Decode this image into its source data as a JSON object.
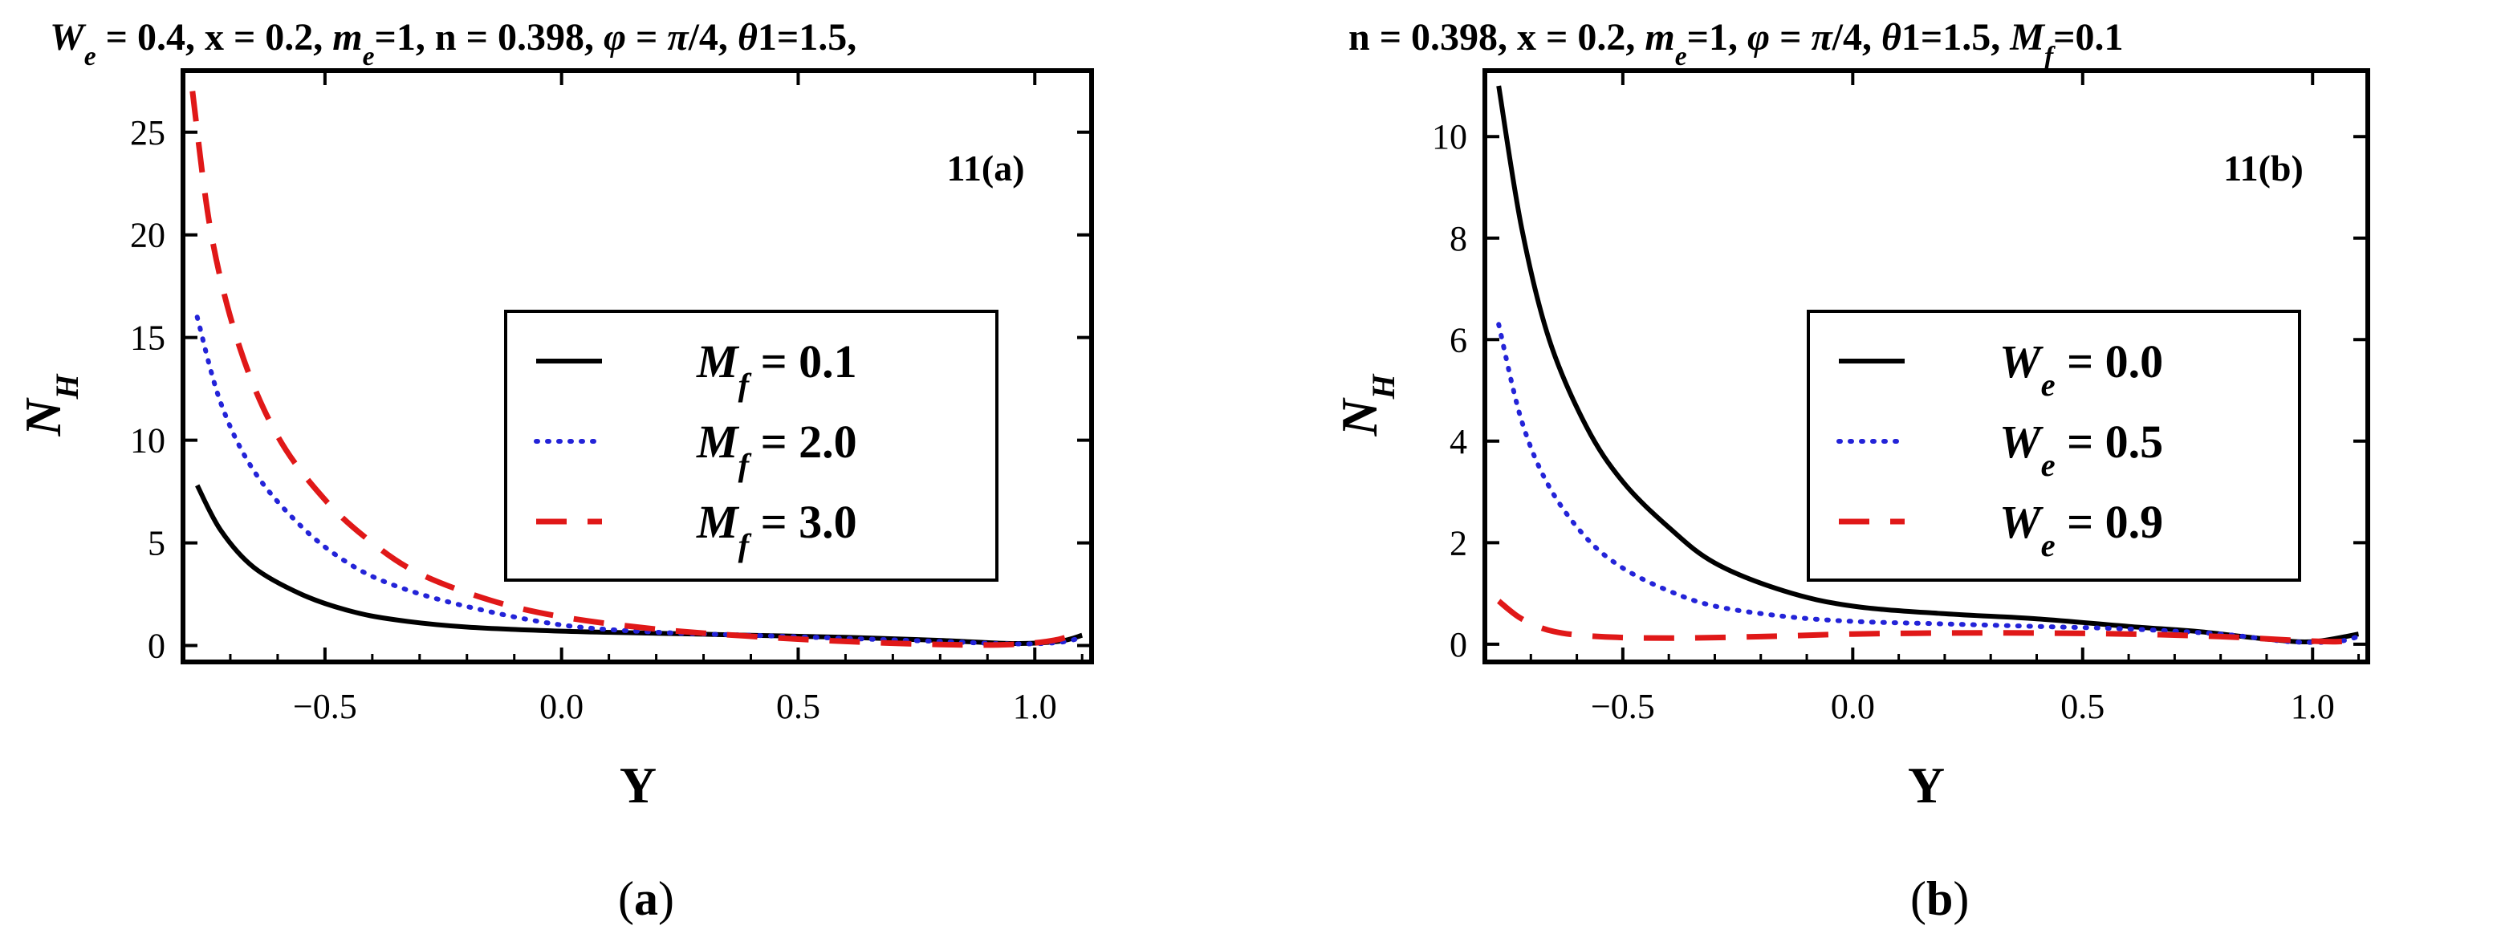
{
  "chart_data": [
    {
      "type": "line",
      "title": "W_e = 0.4, x = 0.2, m_e=1, n = 0.398, φ = π/4, θ1=1.5,",
      "title_parts": [
        {
          "t": "W",
          "i": true
        },
        {
          "t": "e",
          "sub": true,
          "i": true
        },
        {
          "t": " = 0.4, x = 0.2, "
        },
        {
          "t": "m",
          "i": true
        },
        {
          "t": "e",
          "sub": true,
          "i": true
        },
        {
          "t": "=1, n = 0.398, "
        },
        {
          "t": "φ",
          "i": true
        },
        {
          "t": " = "
        },
        {
          "t": "π",
          "i": true
        },
        {
          "t": "/4, "
        },
        {
          "t": "θ",
          "i": true
        },
        {
          "t": "1=1.5,"
        }
      ],
      "panel_tag": "11(a)",
      "caption": "(a)",
      "caption_bold": "a",
      "xlabel": "Y",
      "ylabel": "N_H",
      "xlim": [
        -0.8,
        1.12
      ],
      "ylim": [
        -0.8,
        28
      ],
      "xticks": [
        -0.5,
        0.0,
        0.5,
        1.0
      ],
      "xtick_labels": [
        "−0.5",
        "0.0",
        "0.5",
        "1.0"
      ],
      "yticks": [
        0,
        5,
        10,
        15,
        20,
        25
      ],
      "ytick_labels": [
        "0",
        "5",
        "10",
        "15",
        "20",
        "25"
      ],
      "grid": false,
      "legend_position": "center-right",
      "series": [
        {
          "name": "M_f = 0.1",
          "legend_sym": "M",
          "legend_sub": "f",
          "legend_val": " = 0.1",
          "style": "solid",
          "color": "#000000",
          "points": [
            [
              -0.77,
              7.8
            ],
            [
              -0.72,
              5.6
            ],
            [
              -0.65,
              3.8
            ],
            [
              -0.55,
              2.5
            ],
            [
              -0.45,
              1.7
            ],
            [
              -0.35,
              1.25
            ],
            [
              -0.2,
              0.9
            ],
            [
              0.0,
              0.7
            ],
            [
              0.2,
              0.6
            ],
            [
              0.4,
              0.5
            ],
            [
              0.6,
              0.4
            ],
            [
              0.8,
              0.25
            ],
            [
              0.95,
              0.1
            ],
            [
              1.05,
              0.2
            ],
            [
              1.1,
              0.5
            ]
          ]
        },
        {
          "name": "M_f = 2.0",
          "legend_sym": "M",
          "legend_sub": "f",
          "legend_val": " = 2.0",
          "style": "dotted",
          "color": "#2323d8",
          "points": [
            [
              -0.77,
              16
            ],
            [
              -0.72,
              11.8
            ],
            [
              -0.65,
              8.5
            ],
            [
              -0.55,
              5.8
            ],
            [
              -0.45,
              4.0
            ],
            [
              -0.35,
              2.9
            ],
            [
              -0.2,
              1.9
            ],
            [
              0.0,
              1.0
            ],
            [
              0.2,
              0.65
            ],
            [
              0.4,
              0.5
            ],
            [
              0.6,
              0.35
            ],
            [
              0.8,
              0.2
            ],
            [
              0.95,
              0.08
            ],
            [
              1.05,
              0.15
            ],
            [
              1.1,
              0.4
            ]
          ]
        },
        {
          "name": "M_f = 3.0",
          "legend_sym": "M",
          "legend_sub": "f",
          "legend_val": " = 3.0",
          "style": "dashed",
          "color": "#e01818",
          "points": [
            [
              -0.78,
              27
            ],
            [
              -0.74,
              20
            ],
            [
              -0.68,
              14.5
            ],
            [
              -0.6,
              10.2
            ],
            [
              -0.5,
              7.1
            ],
            [
              -0.4,
              5.0
            ],
            [
              -0.3,
              3.5
            ],
            [
              -0.15,
              2.2
            ],
            [
              0.0,
              1.4
            ],
            [
              0.2,
              0.8
            ],
            [
              0.4,
              0.45
            ],
            [
              0.6,
              0.2
            ],
            [
              0.8,
              0.05
            ],
            [
              0.95,
              0.05
            ],
            [
              1.05,
              0.3
            ],
            [
              1.1,
              0.8
            ]
          ]
        }
      ]
    },
    {
      "type": "line",
      "title": "n = 0.398, x = 0.2, m_e=1, φ = π/4, θ1=1.5, M_f=0.1",
      "title_parts": [
        {
          "t": "n = 0.398, x = 0.2, "
        },
        {
          "t": "m",
          "i": true
        },
        {
          "t": "e",
          "sub": true,
          "i": true
        },
        {
          "t": "=1, "
        },
        {
          "t": "φ",
          "i": true
        },
        {
          "t": " = "
        },
        {
          "t": "π",
          "i": true
        },
        {
          "t": "/4, "
        },
        {
          "t": "θ",
          "i": true
        },
        {
          "t": "1=1.5, "
        },
        {
          "t": "M",
          "i": true
        },
        {
          "t": "f",
          "sub": true,
          "i": true
        },
        {
          "t": "=0.1"
        }
      ],
      "panel_tag": "11(b)",
      "caption": "(b)",
      "caption_bold": "b",
      "xlabel": "Y",
      "ylabel": "N_H",
      "xlim": [
        -0.8,
        1.12
      ],
      "ylim": [
        -0.35,
        11.3
      ],
      "xticks": [
        -0.5,
        0.0,
        0.5,
        1.0
      ],
      "xtick_labels": [
        "−0.5",
        "0.0",
        "0.5",
        "1.0"
      ],
      "yticks": [
        0,
        2,
        4,
        6,
        8,
        10
      ],
      "ytick_labels": [
        "0",
        "2",
        "4",
        "6",
        "8",
        "10"
      ],
      "grid": false,
      "legend_position": "center-right",
      "series": [
        {
          "name": "W_e = 0.0",
          "legend_sym": "W",
          "legend_sub": "e",
          "legend_val": " = 0.0",
          "style": "solid",
          "color": "#000000",
          "points": [
            [
              -0.77,
              11
            ],
            [
              -0.72,
              8.2
            ],
            [
              -0.66,
              6.0
            ],
            [
              -0.58,
              4.3
            ],
            [
              -0.5,
              3.2
            ],
            [
              -0.4,
              2.3
            ],
            [
              -0.3,
              1.6
            ],
            [
              -0.15,
              1.05
            ],
            [
              0.0,
              0.75
            ],
            [
              0.2,
              0.6
            ],
            [
              0.4,
              0.5
            ],
            [
              0.6,
              0.35
            ],
            [
              0.75,
              0.25
            ],
            [
              0.9,
              0.1
            ],
            [
              1.0,
              0.05
            ],
            [
              1.1,
              0.2
            ]
          ]
        },
        {
          "name": "W_e = 0.5",
          "legend_sym": "W",
          "legend_sub": "e",
          "legend_val": " = 0.5",
          "style": "dotted",
          "color": "#2323d8",
          "points": [
            [
              -0.77,
              6.3
            ],
            [
              -0.72,
              4.4
            ],
            [
              -0.66,
              3.1
            ],
            [
              -0.58,
              2.1
            ],
            [
              -0.5,
              1.5
            ],
            [
              -0.4,
              1.05
            ],
            [
              -0.3,
              0.75
            ],
            [
              -0.15,
              0.55
            ],
            [
              0.0,
              0.45
            ],
            [
              0.2,
              0.4
            ],
            [
              0.4,
              0.35
            ],
            [
              0.6,
              0.3
            ],
            [
              0.8,
              0.2
            ],
            [
              0.95,
              0.05
            ],
            [
              1.05,
              0.05
            ],
            [
              1.1,
              0.15
            ]
          ]
        },
        {
          "name": "W_e = 0.9",
          "legend_sym": "W",
          "legend_sub": "e",
          "legend_val": " = 0.9",
          "style": "dashed",
          "color": "#e01818",
          "points": [
            [
              -0.77,
              0.85
            ],
            [
              -0.72,
              0.5
            ],
            [
              -0.65,
              0.25
            ],
            [
              -0.55,
              0.15
            ],
            [
              -0.4,
              0.12
            ],
            [
              -0.2,
              0.15
            ],
            [
              0.0,
              0.2
            ],
            [
              0.2,
              0.22
            ],
            [
              0.4,
              0.22
            ],
            [
              0.6,
              0.2
            ],
            [
              0.8,
              0.15
            ],
            [
              0.95,
              0.08
            ],
            [
              1.05,
              0.05
            ],
            [
              1.1,
              0.1
            ]
          ]
        }
      ]
    }
  ]
}
